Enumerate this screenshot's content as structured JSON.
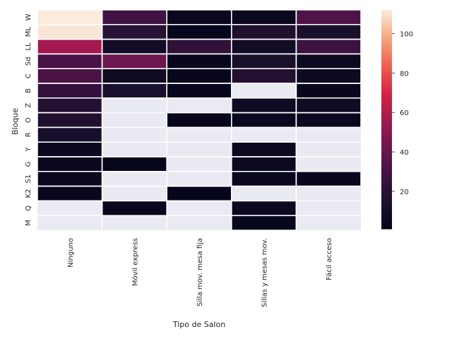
{
  "chart_data": {
    "type": "heatmap",
    "xlabel": "Tipo de Salon",
    "ylabel": "Bloque",
    "columns": [
      "Ninguno",
      "Móvil express",
      "Silla mov. mesa fija",
      "Sillas y mesas mov.",
      "Fácil acceso"
    ],
    "rows": [
      "W",
      "ML",
      "LL",
      "Sd",
      "C",
      "B",
      "Z",
      "O",
      "R",
      "Y",
      "G",
      "S1",
      "K2",
      "Q",
      "M"
    ],
    "values": [
      [
        112,
        28,
        5,
        5,
        33
      ],
      [
        111,
        19,
        2,
        16,
        14
      ],
      [
        57,
        11,
        22,
        10,
        27
      ],
      [
        31,
        42,
        4,
        14,
        6
      ],
      [
        31,
        8,
        3,
        18,
        6
      ],
      [
        24,
        14,
        3,
        null,
        4
      ],
      [
        18,
        null,
        null,
        7,
        8
      ],
      [
        17,
        null,
        3,
        5,
        5
      ],
      [
        13,
        null,
        null,
        null,
        null
      ],
      [
        5,
        null,
        null,
        6,
        null
      ],
      [
        5,
        3,
        null,
        6,
        null
      ],
      [
        5,
        null,
        null,
        5,
        4
      ],
      [
        4,
        null,
        2,
        null,
        null
      ],
      [
        null,
        4,
        null,
        6,
        null
      ],
      [
        null,
        null,
        null,
        4,
        null
      ]
    ],
    "vmin": 1,
    "vmax": 112,
    "colorbar_ticks": [
      20,
      40,
      60,
      80,
      100
    ],
    "colormap": "rocket",
    "missing_color": "#eaeaf2",
    "cell_border_color": "#ffffff"
  }
}
